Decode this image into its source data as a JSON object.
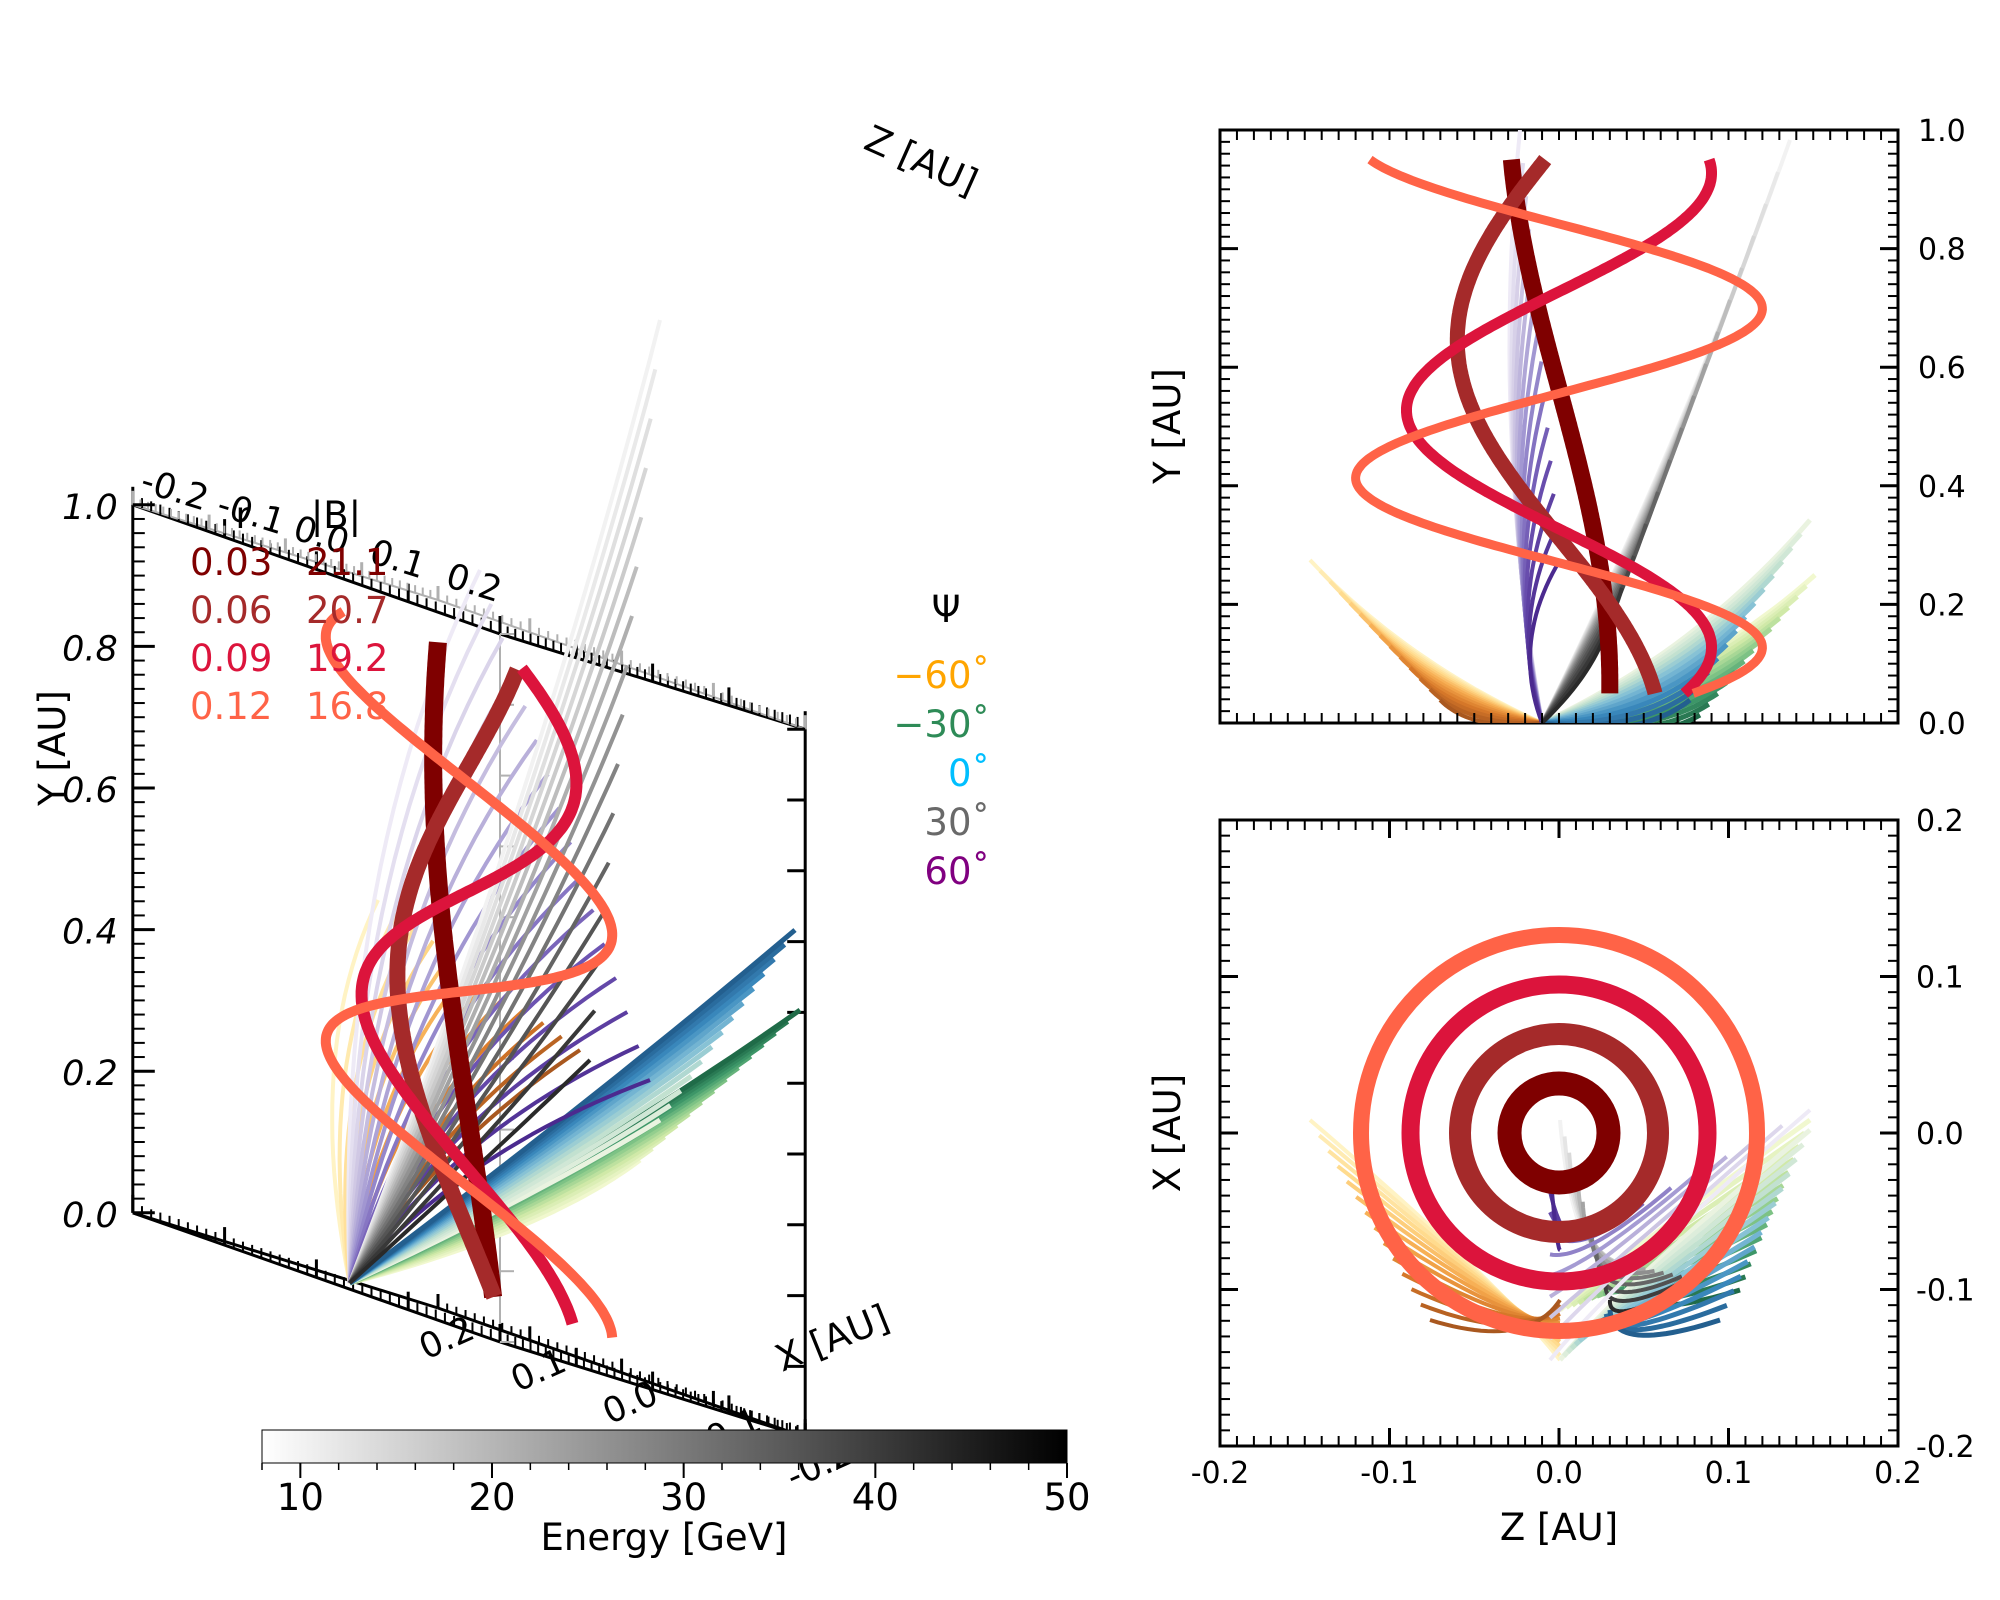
{
  "figure": {
    "colorbar": {
      "label": "Energy [GeV]",
      "ticks": [
        "10",
        "20",
        "30",
        "40",
        "50"
      ],
      "range": [
        8,
        50
      ]
    }
  },
  "chart_data": [
    {
      "type": "line3d",
      "name": "field-line-3d",
      "xlabel": "X [AU]",
      "ylabel": "Y [AU]",
      "zlabel": "Z [AU]",
      "x_ticks": [
        "-0.2",
        "-0.1",
        "0.0",
        "0.1",
        "0.2"
      ],
      "y_ticks": [
        "0.0",
        "0.2",
        "0.4",
        "0.6",
        "0.8",
        "1.0"
      ],
      "z_ticks": [
        "-0.2",
        "-0.1",
        "0.0",
        "0.1",
        "0.2"
      ],
      "xlim": [
        -0.2,
        0.2
      ],
      "ylim": [
        0,
        1.0
      ],
      "zlim": [
        -0.2,
        0.2
      ],
      "helices": [
        {
          "r": "0.03",
          "B": "21.1",
          "color": "#7f0000",
          "turns": 0.5
        },
        {
          "r": "0.06",
          "B": "20.7",
          "color": "#a52a2a",
          "turns": 0.75
        },
        {
          "r": "0.09",
          "B": "19.2",
          "color": "#dc143c",
          "turns": 1.25
        },
        {
          "r": "0.12",
          "B": "16.8",
          "color": "#ff6347",
          "turns": 1.75
        }
      ],
      "legend_r_header": "r",
      "legend_b_header": "|B|",
      "psi_legend": {
        "title": "Ψ",
        "items": [
          {
            "label": "−60˚",
            "color": "#ffa500"
          },
          {
            "label": "−30˚",
            "color": "#2e8b57"
          },
          {
            "label": "0˚",
            "color": "#00bfff"
          },
          {
            "label": "30˚",
            "color": "#696969"
          },
          {
            "label": "60˚",
            "color": "#800080"
          }
        ]
      }
    },
    {
      "type": "line",
      "name": "zy-projection",
      "xlabel": "",
      "ylabel": "Y [AU]",
      "xlim": [
        -0.2,
        0.2
      ],
      "ylim": [
        0,
        1.0
      ],
      "y_ticks": [
        "0.0",
        "0.2",
        "0.4",
        "0.6",
        "0.8",
        "1.0"
      ]
    },
    {
      "type": "line",
      "name": "zx-projection",
      "xlabel": "Z [AU]",
      "ylabel": "X [AU]",
      "xlim": [
        -0.2,
        0.2
      ],
      "ylim": [
        -0.2,
        0.2
      ],
      "x_ticks": [
        "-0.2",
        "-0.1",
        "0.0",
        "0.1",
        "0.2"
      ],
      "y_ticks": [
        "-0.2",
        "-0.1",
        "0.0",
        "0.1",
        "0.2"
      ]
    }
  ]
}
